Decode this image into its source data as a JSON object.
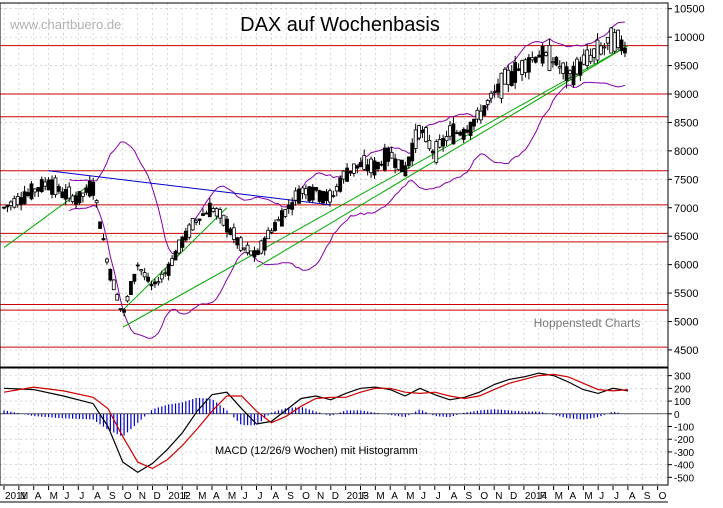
{
  "watermark": "www.chartbuero.de",
  "credit": "Hoppenstedt Charts",
  "chart_data": [
    {
      "type": "candlestick",
      "title": "DAX auf Wochenbasis",
      "ylim": [
        4200,
        10600
      ],
      "y_ticks": [
        4500,
        5000,
        5500,
        6000,
        6500,
        7000,
        7500,
        8000,
        8500,
        9000,
        9500,
        10000,
        10500
      ],
      "x_tick_labels": [
        "2011",
        "M",
        "A",
        "M",
        "J",
        "J",
        "A",
        "S",
        "O",
        "N",
        "D",
        "2012",
        "F",
        "M",
        "A",
        "M",
        "J",
        "J",
        "A",
        "S",
        "O",
        "N",
        "D",
        "2013",
        "F",
        "M",
        "A",
        "M",
        "J",
        "J",
        "A",
        "S",
        "O",
        "N",
        "D",
        "2014",
        "F",
        "M",
        "A",
        "M",
        "J",
        "J",
        "A",
        "S",
        "O"
      ],
      "colors": {
        "up": "#ffffff",
        "down": "#000000",
        "bollinger": "#8800aa",
        "horizontal_lines": "#cc0000",
        "resistance": "#0000cc",
        "support": "#00aa00",
        "grid": "#bbbbbb"
      },
      "price_path": [
        {
          "x": "2011-01",
          "y": 7000
        },
        {
          "x": "2011-03",
          "y": 7300
        },
        {
          "x": "2011-04",
          "y": 7450
        },
        {
          "x": "2011-05",
          "y": 7250
        },
        {
          "x": "2011-06",
          "y": 7150
        },
        {
          "x": "2011-07",
          "y": 7400
        },
        {
          "x": "2011-08",
          "y": 6000
        },
        {
          "x": "2011-09",
          "y": 5100
        },
        {
          "x": "2011-10",
          "y": 6000
        },
        {
          "x": "2011-11",
          "y": 5600
        },
        {
          "x": "2011-12",
          "y": 5900
        },
        {
          "x": "2012-01",
          "y": 6400
        },
        {
          "x": "2012-02",
          "y": 6800
        },
        {
          "x": "2012-03",
          "y": 7000
        },
        {
          "x": "2012-04",
          "y": 6700
        },
        {
          "x": "2012-05",
          "y": 6300
        },
        {
          "x": "2012-06",
          "y": 6150
        },
        {
          "x": "2012-07",
          "y": 6600
        },
        {
          "x": "2012-08",
          "y": 6950
        },
        {
          "x": "2012-09",
          "y": 7300
        },
        {
          "x": "2012-10",
          "y": 7300
        },
        {
          "x": "2012-11",
          "y": 7150
        },
        {
          "x": "2012-12",
          "y": 7600
        },
        {
          "x": "2013-01",
          "y": 7750
        },
        {
          "x": "2013-02",
          "y": 7700
        },
        {
          "x": "2013-03",
          "y": 7950
        },
        {
          "x": "2013-04",
          "y": 7650
        },
        {
          "x": "2013-05",
          "y": 8400
        },
        {
          "x": "2013-06",
          "y": 7950
        },
        {
          "x": "2013-07",
          "y": 8300
        },
        {
          "x": "2013-08",
          "y": 8350
        },
        {
          "x": "2013-09",
          "y": 8600
        },
        {
          "x": "2013-10",
          "y": 9000
        },
        {
          "x": "2013-11",
          "y": 9300
        },
        {
          "x": "2013-12",
          "y": 9500
        },
        {
          "x": "2014-01",
          "y": 9700
        },
        {
          "x": "2014-02",
          "y": 9600
        },
        {
          "x": "2014-03",
          "y": 9300
        },
        {
          "x": "2014-04",
          "y": 9550
        },
        {
          "x": "2014-05",
          "y": 9750
        },
        {
          "x": "2014-06",
          "y": 9950
        },
        {
          "x": "2014-07",
          "y": 9800
        }
      ],
      "horizontal_levels": [
        4550,
        5200,
        5300,
        6400,
        6550,
        7050,
        7650,
        8600,
        9000,
        9850
      ],
      "trendlines": [
        {
          "kind": "resistance",
          "from": {
            "x": "2011-04",
            "y": 7650
          },
          "to": {
            "x": "2012-11",
            "y": 7050
          }
        },
        {
          "kind": "support",
          "from": {
            "x": "2011-09",
            "y": 4900
          },
          "to": {
            "x": "2014-07",
            "y": 9850
          }
        },
        {
          "kind": "support",
          "from": {
            "x": "2012-06",
            "y": 5950
          },
          "to": {
            "x": "2014-07",
            "y": 9850
          }
        },
        {
          "kind": "support",
          "from": {
            "x": "2011-01",
            "y": 6300
          },
          "to": {
            "x": "2011-07",
            "y": 7450
          }
        },
        {
          "kind": "support",
          "from": {
            "x": "2011-09",
            "y": 5200
          },
          "to": {
            "x": "2012-04",
            "y": 7000
          }
        }
      ]
    },
    {
      "type": "line",
      "title": "MACD (12/26/9 Wochen) mit Histogramm",
      "ylim": [
        -560,
        360
      ],
      "y_ticks": [
        300,
        200,
        100,
        0,
        -100,
        -200,
        -300,
        -400,
        -500
      ],
      "series": [
        {
          "color": "#000000",
          "values": [
            {
              "x": "2011-01",
              "y": 200
            },
            {
              "x": "2011-03",
              "y": 190
            },
            {
              "x": "2011-05",
              "y": 140
            },
            {
              "x": "2011-07",
              "y": 80
            },
            {
              "x": "2011-08",
              "y": -100
            },
            {
              "x": "2011-09",
              "y": -380
            },
            {
              "x": "2011-10",
              "y": -460
            },
            {
              "x": "2011-11",
              "y": -390
            },
            {
              "x": "2011-12",
              "y": -280
            },
            {
              "x": "2012-01",
              "y": -150
            },
            {
              "x": "2012-02",
              "y": 20
            },
            {
              "x": "2012-03",
              "y": 150
            },
            {
              "x": "2012-04",
              "y": 170
            },
            {
              "x": "2012-05",
              "y": 40
            },
            {
              "x": "2012-06",
              "y": -80
            },
            {
              "x": "2012-07",
              "y": -60
            },
            {
              "x": "2012-08",
              "y": 30
            },
            {
              "x": "2012-09",
              "y": 120
            },
            {
              "x": "2012-10",
              "y": 140
            },
            {
              "x": "2012-11",
              "y": 110
            },
            {
              "x": "2012-12",
              "y": 160
            },
            {
              "x": "2013-01",
              "y": 200
            },
            {
              "x": "2013-02",
              "y": 210
            },
            {
              "x": "2013-03",
              "y": 190
            },
            {
              "x": "2013-04",
              "y": 140
            },
            {
              "x": "2013-05",
              "y": 200
            },
            {
              "x": "2013-06",
              "y": 150
            },
            {
              "x": "2013-07",
              "y": 110
            },
            {
              "x": "2013-08",
              "y": 130
            },
            {
              "x": "2013-09",
              "y": 170
            },
            {
              "x": "2013-10",
              "y": 230
            },
            {
              "x": "2013-11",
              "y": 270
            },
            {
              "x": "2013-12",
              "y": 290
            },
            {
              "x": "2014-01",
              "y": 320
            },
            {
              "x": "2014-02",
              "y": 300
            },
            {
              "x": "2014-03",
              "y": 250
            },
            {
              "x": "2014-04",
              "y": 190
            },
            {
              "x": "2014-05",
              "y": 160
            },
            {
              "x": "2014-06",
              "y": 200
            },
            {
              "x": "2014-07",
              "y": 180
            }
          ]
        },
        {
          "color": "#cc0000",
          "values": [
            {
              "x": "2011-01",
              "y": 170
            },
            {
              "x": "2011-03",
              "y": 210
            },
            {
              "x": "2011-05",
              "y": 180
            },
            {
              "x": "2011-07",
              "y": 130
            },
            {
              "x": "2011-08",
              "y": 40
            },
            {
              "x": "2011-09",
              "y": -180
            },
            {
              "x": "2011-10",
              "y": -380
            },
            {
              "x": "2011-11",
              "y": -430
            },
            {
              "x": "2011-12",
              "y": -360
            },
            {
              "x": "2012-01",
              "y": -250
            },
            {
              "x": "2012-02",
              "y": -120
            },
            {
              "x": "2012-03",
              "y": 20
            },
            {
              "x": "2012-04",
              "y": 140
            },
            {
              "x": "2012-05",
              "y": 140
            },
            {
              "x": "2012-06",
              "y": 20
            },
            {
              "x": "2012-07",
              "y": -70
            },
            {
              "x": "2012-08",
              "y": -20
            },
            {
              "x": "2012-09",
              "y": 60
            },
            {
              "x": "2012-10",
              "y": 120
            },
            {
              "x": "2012-11",
              "y": 130
            },
            {
              "x": "2012-12",
              "y": 130
            },
            {
              "x": "2013-01",
              "y": 170
            },
            {
              "x": "2013-02",
              "y": 200
            },
            {
              "x": "2013-03",
              "y": 200
            },
            {
              "x": "2013-04",
              "y": 170
            },
            {
              "x": "2013-05",
              "y": 160
            },
            {
              "x": "2013-06",
              "y": 170
            },
            {
              "x": "2013-07",
              "y": 140
            },
            {
              "x": "2013-08",
              "y": 120
            },
            {
              "x": "2013-09",
              "y": 140
            },
            {
              "x": "2013-10",
              "y": 190
            },
            {
              "x": "2013-11",
              "y": 240
            },
            {
              "x": "2013-12",
              "y": 270
            },
            {
              "x": "2014-01",
              "y": 300
            },
            {
              "x": "2014-02",
              "y": 310
            },
            {
              "x": "2014-03",
              "y": 290
            },
            {
              "x": "2014-04",
              "y": 240
            },
            {
              "x": "2014-05",
              "y": 190
            },
            {
              "x": "2014-06",
              "y": 180
            },
            {
              "x": "2014-07",
              "y": 190
            }
          ]
        }
      ],
      "histogram_color": "#0000cc"
    }
  ]
}
